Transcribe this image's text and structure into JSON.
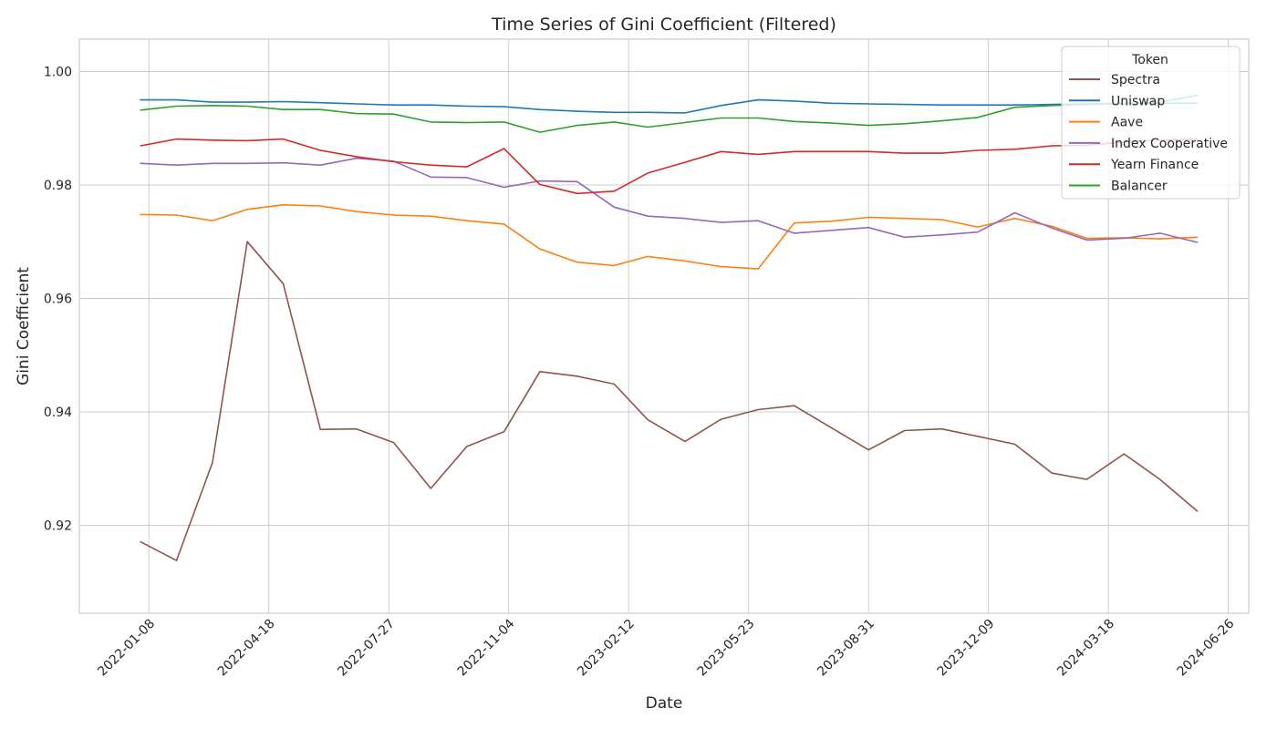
{
  "chart_data": {
    "type": "line",
    "title": "Time Series of Gini Coefficient (Filtered)",
    "xlabel": "Date",
    "ylabel": "Gini Coefficient",
    "x_type": "date",
    "xlim": [
      "2021-11-11",
      "2024-07-13"
    ],
    "ylim": [
      0.9045,
      1.0057
    ],
    "x_ticks": [
      "2022-01-08",
      "2022-04-18",
      "2022-07-27",
      "2022-11-04",
      "2023-02-12",
      "2023-05-23",
      "2023-08-31",
      "2023-12-09",
      "2024-03-18",
      "2024-06-26"
    ],
    "y_ticks": [
      0.92,
      0.94,
      0.96,
      0.98,
      1.0
    ],
    "y_tick_labels": [
      "0.92",
      "0.94",
      "0.96",
      "0.98",
      "1.00"
    ],
    "grid": true,
    "legend": {
      "title": "Token",
      "position": "top-right"
    },
    "series": [
      {
        "name": "Spectra",
        "color": "#8c564b",
        "x": [
          "2022-01-01",
          "2022-01-31",
          "2022-03-02",
          "2022-03-31",
          "2022-04-30",
          "2022-05-31",
          "2022-06-30",
          "2022-07-31",
          "2022-08-31",
          "2022-09-30",
          "2022-10-31",
          "2022-11-30",
          "2022-12-31",
          "2023-01-31",
          "2023-02-28",
          "2023-03-31",
          "2023-04-30",
          "2023-05-31",
          "2023-06-30",
          "2023-07-31",
          "2023-08-31",
          "2023-09-30",
          "2023-10-31",
          "2023-11-30",
          "2023-12-31",
          "2024-01-31",
          "2024-02-29",
          "2024-03-31",
          "2024-04-30",
          "2024-05-31"
        ],
        "y": [
          0.9171,
          0.9138,
          0.9311,
          0.97,
          0.9626,
          0.9369,
          0.937,
          0.9346,
          0.9265,
          0.9339,
          0.9365,
          0.9471,
          0.9463,
          0.9449,
          0.9386,
          0.9348,
          0.9387,
          0.9404,
          0.9411,
          0.9372,
          0.9333,
          0.9367,
          0.937,
          0.9357,
          0.9343,
          0.9292,
          0.9281,
          0.9326,
          0.9281,
          0.9225
        ]
      },
      {
        "name": "Uniswap",
        "color": "#1f77b4",
        "x": [
          "2022-01-01",
          "2022-01-31",
          "2022-03-02",
          "2022-03-31",
          "2022-04-30",
          "2022-05-31",
          "2022-06-30",
          "2022-07-31",
          "2022-08-31",
          "2022-09-30",
          "2022-10-31",
          "2022-11-30",
          "2022-12-31",
          "2023-01-31",
          "2023-02-28",
          "2023-03-31",
          "2023-04-30",
          "2023-05-31",
          "2023-06-30",
          "2023-07-31",
          "2023-08-31",
          "2023-09-30",
          "2023-10-31",
          "2023-11-30",
          "2023-12-31",
          "2024-01-31",
          "2024-02-29",
          "2024-03-31",
          "2024-04-30",
          "2024-05-31"
        ],
        "y": [
          0.995,
          0.995,
          0.9946,
          0.9946,
          0.9947,
          0.9945,
          0.9943,
          0.9941,
          0.9941,
          0.9939,
          0.9938,
          0.9933,
          0.993,
          0.9928,
          0.9928,
          0.9927,
          0.994,
          0.995,
          0.9948,
          0.9944,
          0.9943,
          0.9942,
          0.9941,
          0.9941,
          0.9941,
          0.9942,
          0.9943,
          0.9943,
          0.9944,
          0.9944
        ]
      },
      {
        "name": "Aave",
        "color": "#ff7f0e",
        "x": [
          "2022-01-01",
          "2022-01-31",
          "2022-03-02",
          "2022-03-31",
          "2022-04-30",
          "2022-05-31",
          "2022-06-30",
          "2022-07-31",
          "2022-08-31",
          "2022-09-30",
          "2022-10-31",
          "2022-11-30",
          "2022-12-31",
          "2023-01-31",
          "2023-02-28",
          "2023-03-31",
          "2023-04-30",
          "2023-05-31",
          "2023-06-30",
          "2023-07-31",
          "2023-08-31",
          "2023-09-30",
          "2023-10-31",
          "2023-11-30",
          "2023-12-31",
          "2024-01-31",
          "2024-02-29",
          "2024-03-31",
          "2024-04-30",
          "2024-05-31"
        ],
        "y": [
          0.9748,
          0.9747,
          0.9737,
          0.9757,
          0.9765,
          0.9763,
          0.9753,
          0.9747,
          0.9745,
          0.9737,
          0.9731,
          0.9687,
          0.9664,
          0.9658,
          0.9674,
          0.9666,
          0.9656,
          0.9652,
          0.9733,
          0.9736,
          0.9743,
          0.9741,
          0.9739,
          0.9726,
          0.9741,
          0.9727,
          0.9706,
          0.9707,
          0.9705,
          0.9708
        ]
      },
      {
        "name": "Index Cooperative",
        "color": "#9467bd",
        "x": [
          "2022-01-01",
          "2022-01-31",
          "2022-03-02",
          "2022-03-31",
          "2022-04-30",
          "2022-05-31",
          "2022-06-30",
          "2022-07-31",
          "2022-08-31",
          "2022-09-30",
          "2022-10-31",
          "2022-11-30",
          "2022-12-31",
          "2023-01-31",
          "2023-02-28",
          "2023-03-31",
          "2023-04-30",
          "2023-05-31",
          "2023-06-30",
          "2023-07-31",
          "2023-08-31",
          "2023-09-30",
          "2023-10-31",
          "2023-11-30",
          "2023-12-31",
          "2024-01-31",
          "2024-02-29",
          "2024-03-31",
          "2024-04-30",
          "2024-05-31"
        ],
        "y": [
          0.9838,
          0.9835,
          0.9838,
          0.9838,
          0.9839,
          0.9835,
          0.9847,
          0.9842,
          0.9814,
          0.9813,
          0.9796,
          0.9807,
          0.9806,
          0.9761,
          0.9745,
          0.9741,
          0.9734,
          0.9737,
          0.9715,
          0.972,
          0.9725,
          0.9708,
          0.9712,
          0.9717,
          0.9751,
          0.9724,
          0.9703,
          0.9706,
          0.9715,
          0.9699
        ]
      },
      {
        "name": "Yearn Finance",
        "color": "#d62728",
        "x": [
          "2022-01-01",
          "2022-01-31",
          "2022-03-02",
          "2022-03-31",
          "2022-04-30",
          "2022-05-31",
          "2022-06-30",
          "2022-07-31",
          "2022-08-31",
          "2022-09-30",
          "2022-10-31",
          "2022-11-30",
          "2022-12-31",
          "2023-01-31",
          "2023-02-28",
          "2023-03-31",
          "2023-04-30",
          "2023-05-31",
          "2023-06-30",
          "2023-07-31",
          "2023-08-31",
          "2023-09-30",
          "2023-10-31",
          "2023-11-30",
          "2023-12-31",
          "2024-01-31",
          "2024-02-29",
          "2024-03-31",
          "2024-04-30",
          "2024-05-31"
        ],
        "y": [
          0.9869,
          0.9881,
          0.9879,
          0.9878,
          0.9881,
          0.9861,
          0.985,
          0.9841,
          0.9835,
          0.9832,
          0.9864,
          0.9801,
          0.9785,
          0.9789,
          0.9821,
          0.984,
          0.9859,
          0.9854,
          0.9859,
          0.9859,
          0.9859,
          0.9856,
          0.9856,
          0.9861,
          0.9863,
          0.9869,
          0.987,
          0.9876,
          0.9879,
          0.9881
        ]
      },
      {
        "name": "Balancer",
        "color": "#2ca02c",
        "x": [
          "2022-01-01",
          "2022-01-31",
          "2022-03-02",
          "2022-03-31",
          "2022-04-30",
          "2022-05-31",
          "2022-06-30",
          "2022-07-31",
          "2022-08-31",
          "2022-09-30",
          "2022-10-31",
          "2022-11-30",
          "2022-12-31",
          "2023-01-31",
          "2023-02-28",
          "2023-03-31",
          "2023-04-30",
          "2023-05-31",
          "2023-06-30",
          "2023-07-31",
          "2023-08-31",
          "2023-09-30",
          "2023-10-31",
          "2023-11-30",
          "2023-12-31",
          "2024-01-31",
          "2024-02-29",
          "2024-03-31",
          "2024-04-30",
          "2024-05-31"
        ],
        "y": [
          0.9932,
          0.9939,
          0.994,
          0.9939,
          0.9933,
          0.9933,
          0.9926,
          0.9925,
          0.9911,
          0.991,
          0.9911,
          0.9893,
          0.9905,
          0.9911,
          0.9902,
          0.991,
          0.9918,
          0.9918,
          0.9912,
          0.9909,
          0.9905,
          0.9908,
          0.9913,
          0.9919,
          0.9937,
          0.994,
          0.9942,
          0.9944,
          0.9946,
          0.9958
        ]
      }
    ]
  }
}
